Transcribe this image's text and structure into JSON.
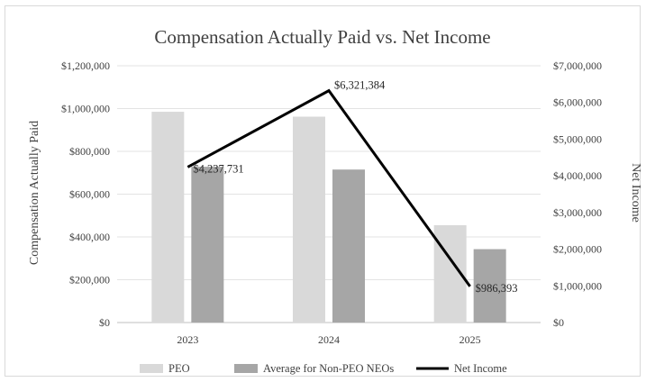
{
  "chart_data": {
    "type": "bar+line",
    "title": "Compensation Actually Paid vs. Net Income",
    "categories": [
      "2023",
      "2024",
      "2025"
    ],
    "y_left": {
      "label": "Compensation Actually Paid",
      "range": [
        0,
        1200000
      ],
      "ticks": [
        "$0",
        "$200,000",
        "$400,000",
        "$600,000",
        "$800,000",
        "$1,000,000",
        "$1,200,000"
      ]
    },
    "y_right": {
      "label": "Net Income",
      "range": [
        0,
        7000000
      ],
      "ticks": [
        "$0",
        "$1,000,000",
        "$2,000,000",
        "$3,000,000",
        "$4,000,000",
        "$5,000,000",
        "$6,000,000",
        "$7,000,000"
      ]
    },
    "series": [
      {
        "name": "PEO",
        "type": "bar",
        "axis": "left",
        "color": "#d9d9d9",
        "values": [
          985000,
          962000,
          455000
        ]
      },
      {
        "name": "Average for Non-PEO NEOs",
        "type": "bar",
        "axis": "left",
        "color": "#a6a6a6",
        "values": [
          728000,
          715000,
          343000
        ]
      },
      {
        "name": "Net Income",
        "type": "line",
        "axis": "right",
        "color": "#000000",
        "values": [
          4237731,
          6321384,
          986393
        ],
        "labels": [
          "$4,237,731",
          "$6,321,384",
          "$986,393"
        ]
      }
    ],
    "grid": true,
    "legend": "bottom"
  }
}
